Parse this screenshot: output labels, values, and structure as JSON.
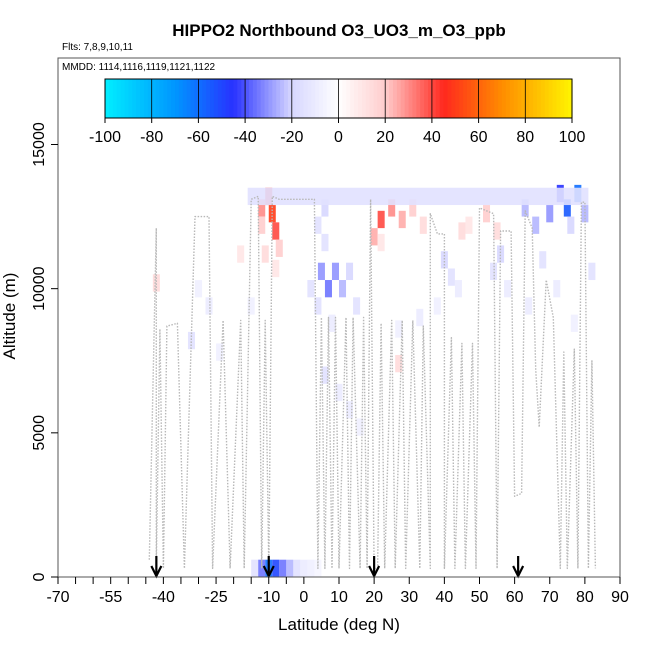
{
  "chart_data": {
    "type": "heatmap",
    "title": "HIPPO2 Northbound O3_UO3_m_O3_ppb",
    "flights_label": "Flts: 7,8,9,10,11",
    "mmdd_label": "MMDD: 1114,1116,1119,1121,1122",
    "xlabel": "Latitude (deg N)",
    "ylabel": "Altitude (m)",
    "xlim": [
      -70,
      90
    ],
    "ylim": [
      0,
      18000
    ],
    "x_ticks": [
      -70,
      -55,
      -40,
      -25,
      -10,
      0,
      10,
      20,
      30,
      40,
      50,
      60,
      70,
      80,
      90
    ],
    "x_tick_labels": [
      "-70",
      "-55",
      "-40",
      "-25",
      "-10",
      "0",
      "10",
      "20",
      "30",
      "40",
      "50",
      "60",
      "70",
      "80",
      "90"
    ],
    "y_ticks": [
      0,
      5000,
      10000,
      15000
    ],
    "y_tick_labels": [
      "0",
      "5000",
      "10000",
      "15000"
    ],
    "colorbar": {
      "min": -100,
      "max": 100,
      "ticks": [
        -100,
        -80,
        -60,
        -40,
        -20,
        0,
        20,
        40,
        60,
        80,
        100
      ],
      "tick_labels": [
        "-100",
        "-80",
        "-60",
        "-40",
        "-20",
        "0",
        "20",
        "40",
        "60",
        "80",
        "100"
      ]
    },
    "arrows_latitude": [
      -42,
      -10,
      20,
      61
    ],
    "cells": [
      {
        "lat": -12,
        "alt": 12800,
        "v": 30
      },
      {
        "lat": -12,
        "alt": 12200,
        "v": 20
      },
      {
        "lat": -10,
        "alt": 13200,
        "v": 40
      },
      {
        "lat": -9,
        "alt": 12600,
        "v": 50
      },
      {
        "lat": -8,
        "alt": 12000,
        "v": 40
      },
      {
        "lat": -7,
        "alt": 11400,
        "v": 20
      },
      {
        "lat": -11,
        "alt": 11200,
        "v": 15
      },
      {
        "lat": -8,
        "alt": 10700,
        "v": 10
      },
      {
        "lat": 4,
        "alt": 12200,
        "v": -15
      },
      {
        "lat": 6,
        "alt": 12800,
        "v": -20
      },
      {
        "lat": 6,
        "alt": 11600,
        "v": -15
      },
      {
        "lat": 5,
        "alt": 10600,
        "v": -30
      },
      {
        "lat": 7,
        "alt": 10000,
        "v": -35
      },
      {
        "lat": 9,
        "alt": 10600,
        "v": -30
      },
      {
        "lat": 11,
        "alt": 10000,
        "v": -25
      },
      {
        "lat": 13,
        "alt": 10600,
        "v": -20
      },
      {
        "lat": 4,
        "alt": 9400,
        "v": -15
      },
      {
        "lat": 8,
        "alt": 8800,
        "v": -10
      },
      {
        "lat": 6,
        "alt": 7000,
        "v": -15
      },
      {
        "lat": 10,
        "alt": 6400,
        "v": -10
      },
      {
        "lat": 13,
        "alt": 5800,
        "v": -10
      },
      {
        "lat": 16,
        "alt": 5200,
        "v": -8
      },
      {
        "lat": 2,
        "alt": 10000,
        "v": -15
      },
      {
        "lat": 15,
        "alt": 9400,
        "v": -15
      },
      {
        "lat": 20,
        "alt": 11800,
        "v": 25
      },
      {
        "lat": 22,
        "alt": 12400,
        "v": 40
      },
      {
        "lat": 25,
        "alt": 12800,
        "v": 30
      },
      {
        "lat": 28,
        "alt": 12400,
        "v": 25
      },
      {
        "lat": 31,
        "alt": 12800,
        "v": 20
      },
      {
        "lat": 34,
        "alt": 12200,
        "v": 15
      },
      {
        "lat": 22,
        "alt": 11600,
        "v": 10
      },
      {
        "lat": 27,
        "alt": 7400,
        "v": 15
      },
      {
        "lat": 40,
        "alt": 11000,
        "v": -20
      },
      {
        "lat": 42,
        "alt": 10400,
        "v": -15
      },
      {
        "lat": 44,
        "alt": 10000,
        "v": -10
      },
      {
        "lat": 38,
        "alt": 9400,
        "v": -8
      },
      {
        "lat": 45,
        "alt": 12000,
        "v": 15
      },
      {
        "lat": 47,
        "alt": 12200,
        "v": 10
      },
      {
        "lat": 52,
        "alt": 12600,
        "v": 20
      },
      {
        "lat": 55,
        "alt": 12000,
        "v": 15
      },
      {
        "lat": 56,
        "alt": 11200,
        "v": -20
      },
      {
        "lat": 54,
        "alt": 10600,
        "v": -15
      },
      {
        "lat": 58,
        "alt": 10000,
        "v": -10
      },
      {
        "lat": 63,
        "alt": 12800,
        "v": -25
      },
      {
        "lat": 66,
        "alt": 12200,
        "v": -25
      },
      {
        "lat": 70,
        "alt": 12600,
        "v": -30
      },
      {
        "lat": 73,
        "alt": 13300,
        "v": -45
      },
      {
        "lat": 75,
        "alt": 12800,
        "v": -55
      },
      {
        "lat": 78,
        "alt": 13300,
        "v": -60
      },
      {
        "lat": 76,
        "alt": 12200,
        "v": -20
      },
      {
        "lat": 80,
        "alt": 12600,
        "v": -25
      },
      {
        "lat": 68,
        "alt": 11000,
        "v": -15
      },
      {
        "lat": 72,
        "alt": 10000,
        "v": -10
      },
      {
        "lat": 82,
        "alt": 10600,
        "v": -15
      },
      {
        "lat": 64,
        "alt": 9400,
        "v": -10
      },
      {
        "lat": 77,
        "alt": 8800,
        "v": -8
      },
      {
        "lat": -42,
        "alt": 10200,
        "v": 15
      },
      {
        "lat": -30,
        "alt": 10000,
        "v": -8
      },
      {
        "lat": -27,
        "alt": 9400,
        "v": -10
      },
      {
        "lat": -32,
        "alt": 8200,
        "v": -15
      },
      {
        "lat": -24,
        "alt": 7800,
        "v": -8
      },
      {
        "lat": -18,
        "alt": 11200,
        "v": 10
      },
      {
        "lat": -15,
        "alt": 9400,
        "v": -8
      },
      {
        "lat": 27,
        "alt": 8600,
        "v": -8
      },
      {
        "lat": 33,
        "alt": 9000,
        "v": -10
      },
      {
        "lat": -14,
        "alt": 300,
        "v": -15
      },
      {
        "lat": -12,
        "alt": 300,
        "v": -35
      },
      {
        "lat": -10,
        "alt": 300,
        "v": -60
      },
      {
        "lat": -8,
        "alt": 300,
        "v": -50
      },
      {
        "lat": -6,
        "alt": 300,
        "v": -35
      },
      {
        "lat": -4,
        "alt": 300,
        "v": -25
      },
      {
        "lat": -2,
        "alt": 300,
        "v": -15
      },
      {
        "lat": 0,
        "alt": 300,
        "v": -10
      },
      {
        "lat": 2,
        "alt": 300,
        "v": -8
      },
      {
        "lat": 4,
        "alt": 300,
        "v": -5
      }
    ],
    "band_top": {
      "lat_start": -16,
      "lat_end": 81,
      "alt": 13200,
      "v": -15
    },
    "track": [
      [
        -44,
        600
      ],
      [
        -42,
        12100
      ],
      [
        -42,
        400
      ],
      [
        -41,
        8600
      ],
      [
        -40,
        300
      ],
      [
        -39,
        8700
      ],
      [
        -36,
        8800
      ],
      [
        -34,
        300
      ],
      [
        -31,
        12500
      ],
      [
        -27,
        12500
      ],
      [
        -26,
        300
      ],
      [
        -23,
        8900
      ],
      [
        -21,
        300
      ],
      [
        -18,
        8900
      ],
      [
        -17,
        300
      ],
      [
        -15,
        13100
      ],
      [
        -13,
        13200
      ],
      [
        -12,
        300
      ],
      [
        -11,
        8900
      ],
      [
        -10,
        300
      ],
      [
        -9,
        13200
      ],
      [
        -7,
        13100
      ],
      [
        -2,
        13100
      ],
      [
        3,
        13100
      ],
      [
        4,
        300
      ],
      [
        5,
        9000
      ],
      [
        6,
        300
      ],
      [
        7,
        9000
      ],
      [
        8,
        300
      ],
      [
        9,
        9000
      ],
      [
        10,
        300
      ],
      [
        12,
        9000
      ],
      [
        13,
        300
      ],
      [
        14,
        9000
      ],
      [
        16,
        300
      ],
      [
        17,
        9000
      ],
      [
        18,
        300
      ],
      [
        19,
        13100
      ],
      [
        20,
        300
      ],
      [
        21,
        300
      ],
      [
        22,
        8800
      ],
      [
        23,
        300
      ],
      [
        25,
        8900
      ],
      [
        26,
        300
      ],
      [
        28,
        8900
      ],
      [
        29,
        300
      ],
      [
        31,
        8900
      ],
      [
        33,
        300
      ],
      [
        34,
        8700
      ],
      [
        36,
        300
      ],
      [
        36,
        12600
      ],
      [
        38,
        11900
      ],
      [
        40,
        11900
      ],
      [
        40,
        300
      ],
      [
        42,
        8300
      ],
      [
        43,
        300
      ],
      [
        45,
        8100
      ],
      [
        46,
        300
      ],
      [
        48,
        8100
      ],
      [
        49,
        300
      ],
      [
        50,
        12800
      ],
      [
        54,
        12600
      ],
      [
        55,
        300
      ],
      [
        56,
        12000
      ],
      [
        59,
        12000
      ],
      [
        60,
        2800
      ],
      [
        62,
        2900
      ],
      [
        63,
        12700
      ],
      [
        65,
        12100
      ],
      [
        66,
        7200
      ],
      [
        67,
        5200
      ],
      [
        69,
        10300
      ],
      [
        71,
        9000
      ],
      [
        73,
        300
      ],
      [
        74,
        7800
      ],
      [
        75,
        300
      ],
      [
        77,
        7900
      ],
      [
        78,
        300
      ],
      [
        79,
        13000
      ],
      [
        80,
        13000
      ],
      [
        81,
        300
      ],
      [
        82,
        7500
      ],
      [
        83,
        300
      ]
    ]
  }
}
